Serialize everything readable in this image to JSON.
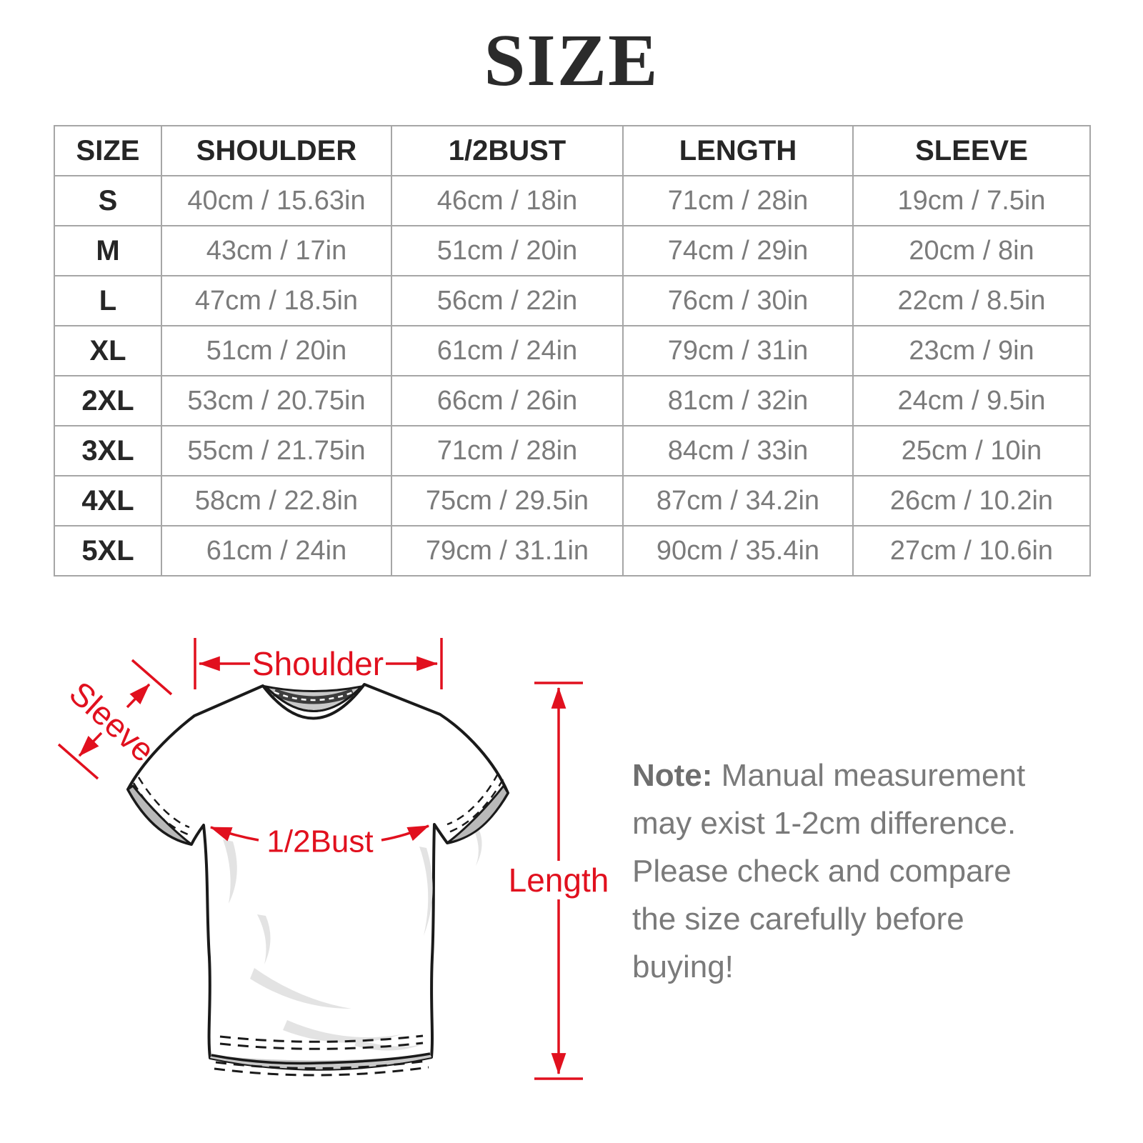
{
  "title": "SIZE",
  "table": {
    "columns": [
      "SIZE",
      "SHOULDER",
      "1/2BUST",
      "LENGTH",
      "SLEEVE"
    ],
    "rows": [
      {
        "size": "S",
        "cells": [
          "40cm / 15.63in",
          "46cm / 18in",
          "71cm / 28in",
          "19cm / 7.5in"
        ]
      },
      {
        "size": "M",
        "cells": [
          "43cm / 17in",
          "51cm / 20in",
          "74cm / 29in",
          "20cm / 8in"
        ]
      },
      {
        "size": "L",
        "cells": [
          "47cm / 18.5in",
          "56cm / 22in",
          "76cm / 30in",
          "22cm / 8.5in"
        ]
      },
      {
        "size": "XL",
        "cells": [
          "51cm / 20in",
          "61cm / 24in",
          "79cm / 31in",
          "23cm / 9in"
        ]
      },
      {
        "size": "2XL",
        "cells": [
          "53cm / 20.75in",
          "66cm / 26in",
          "81cm / 32in",
          "24cm / 9.5in"
        ]
      },
      {
        "size": "3XL",
        "cells": [
          "55cm / 21.75in",
          "71cm / 28in",
          "84cm / 33in",
          "25cm / 10in"
        ]
      },
      {
        "size": "4XL",
        "cells": [
          "58cm / 22.8in",
          "75cm / 29.5in",
          "87cm / 34.2in",
          "26cm / 10.2in"
        ]
      },
      {
        "size": "5XL",
        "cells": [
          "61cm / 24in",
          "79cm / 31.1in",
          "90cm / 35.4in",
          "27cm / 10.6in"
        ]
      }
    ]
  },
  "diagram": {
    "labels": {
      "shoulder": "Shoulder",
      "sleeve": "Sleeve",
      "half_bust": "1/2Bust",
      "length": "Length"
    }
  },
  "note": {
    "label": "Note:",
    "body": " Manual measurement may exist 1-2cm difference. Please check and compare the size carefully before buying!"
  },
  "colors": {
    "accent_red": "#e1101e",
    "table_border": "#a6a6a6",
    "header_text": "#262626",
    "data_text": "#7b7b7b",
    "note_text": "#7a7a7a"
  }
}
